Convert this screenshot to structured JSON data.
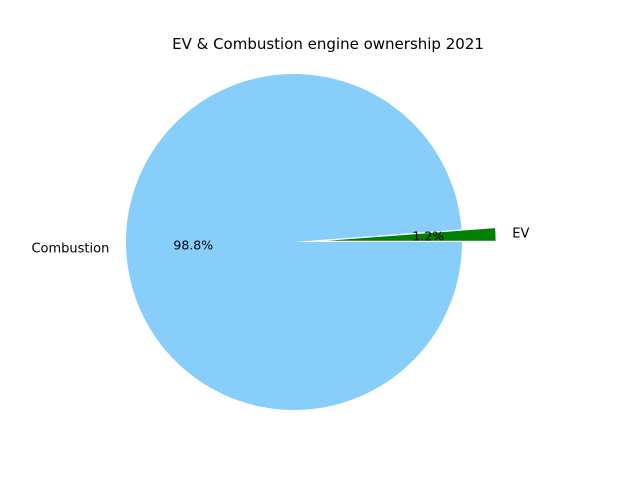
{
  "chart_data": {
    "type": "pie",
    "title": "EV & Combustion engine ownership 2021",
    "slices": [
      {
        "label": "EV",
        "value": 1.2,
        "pct_label": "1.2%",
        "color": "#008000",
        "exploded": true
      },
      {
        "label": "Combustion",
        "value": 98.8,
        "pct_label": "98.8%",
        "color": "#87cefa",
        "exploded": false
      }
    ],
    "start_angle_deg": 0,
    "direction": "counterclockwise",
    "legend": "none"
  }
}
